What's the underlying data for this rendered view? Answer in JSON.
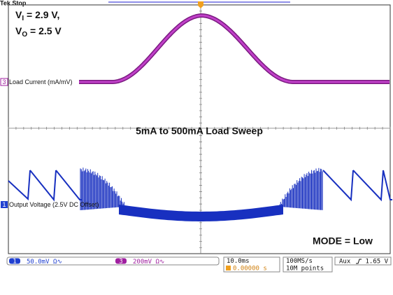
{
  "header": {
    "status": "Tek Stop"
  },
  "annotations": {
    "vi": {
      "symbol": "V",
      "sub": "I",
      "text": " = 2.9 V,"
    },
    "vo": {
      "symbol": "V",
      "sub": "O",
      "text": " = 2.5 V"
    }
  },
  "title": "5mA to 500mA Load Sweep",
  "mode": "MODE = Low",
  "channels": [
    {
      "number": "1",
      "label": "Output Voltage (2.5V DC Offset)",
      "scale": "50.0mV",
      "coupling": "Ω∿"
    },
    {
      "number": "3",
      "label": "Load Current (mA/mV)",
      "scale": "200mV",
      "coupling": "Ω∿"
    }
  ],
  "timebase": {
    "scale": "10.0ms",
    "trigger_position": "0.00000 s"
  },
  "acquisition": {
    "rate": "100MS/s",
    "record": "10M points"
  },
  "trigger": {
    "source": "Aux",
    "level": "1.65 V"
  }
}
